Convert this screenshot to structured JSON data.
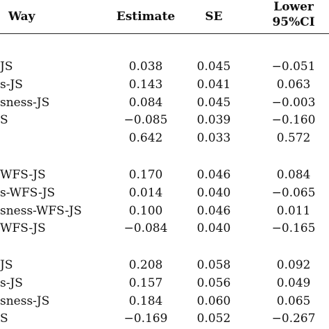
{
  "header": {
    "path": "Way",
    "estimate": "Estimate",
    "se": "SE",
    "lower_line1": "Lower",
    "lower_line2": "95%CI"
  },
  "groups": [
    {
      "rows": [
        {
          "path": "JS",
          "estimate": "0.038",
          "se": "0.045",
          "lower": "−0.051"
        },
        {
          "path": "s-JS",
          "estimate": "0.143",
          "se": "0.041",
          "lower": "0.063"
        },
        {
          "path": "sness-JS",
          "estimate": "0.084",
          "se": "0.045",
          "lower": "−0.003"
        },
        {
          "path": "S",
          "estimate": "−0.085",
          "se": "0.039",
          "lower": "−0.160"
        },
        {
          "path": "",
          "estimate": "0.642",
          "se": "0.033",
          "lower": "0.572"
        }
      ]
    },
    {
      "rows": [
        {
          "path": "WFS-JS",
          "estimate": "0.170",
          "se": "0.046",
          "lower": "0.084"
        },
        {
          "path": "s-WFS-JS",
          "estimate": "0.014",
          "se": "0.040",
          "lower": "−0.065"
        },
        {
          "path": "sness-WFS-JS",
          "estimate": "0.100",
          "se": "0.046",
          "lower": "0.011"
        },
        {
          "path": "WFS-JS",
          "estimate": "−0.084",
          "se": "0.040",
          "lower": "−0.165"
        }
      ]
    },
    {
      "rows": [
        {
          "path": "JS",
          "estimate": "0.208",
          "se": "0.058",
          "lower": "0.092"
        },
        {
          "path": "s-JS",
          "estimate": "0.157",
          "se": "0.056",
          "lower": "0.049"
        },
        {
          "path": "sness-JS",
          "estimate": "0.184",
          "se": "0.060",
          "lower": "0.065"
        },
        {
          "path": "S",
          "estimate": "−0.169",
          "se": "0.052",
          "lower": "−0.267"
        }
      ]
    }
  ]
}
